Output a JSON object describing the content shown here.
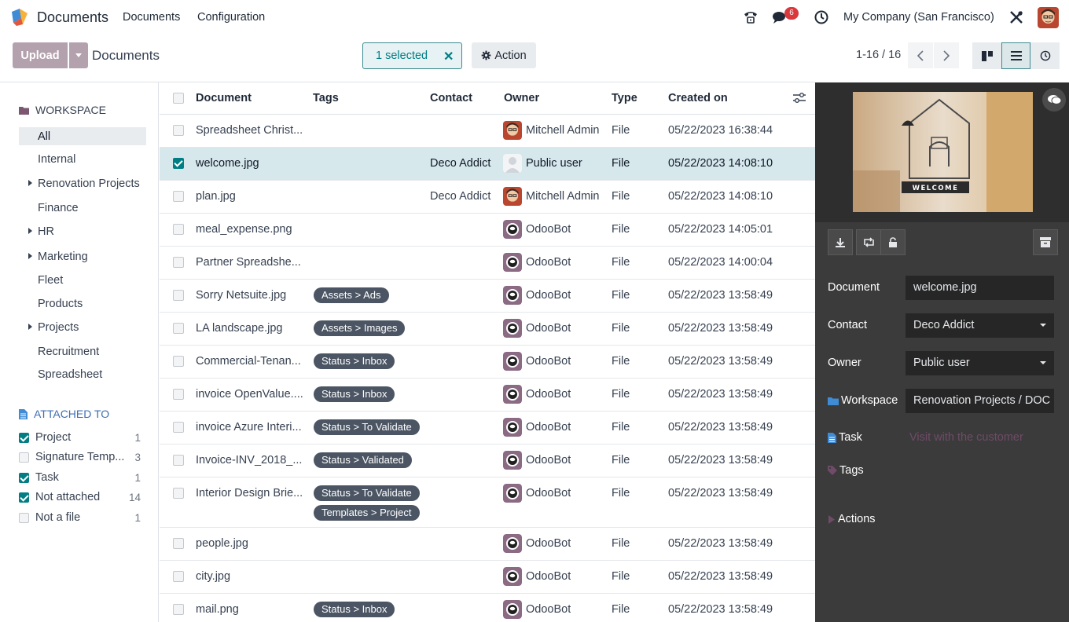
{
  "navbar": {
    "app_name": "Documents",
    "menus": [
      "Documents",
      "Configuration"
    ],
    "icons": [
      "phone-icon",
      "chat-icon",
      "clock-icon",
      "debug-tools-icon"
    ],
    "messages_badge": "6",
    "company": "My Company (San Francisco)"
  },
  "control_panel": {
    "upload_label": "Upload",
    "breadcrumb": "Documents",
    "selected_label": "1 selected",
    "action_label": "Action",
    "pager": "1-16 / 16"
  },
  "sidebar": {
    "workspace_title": "WORKSPACE",
    "workspaces": [
      {
        "label": "All",
        "expandable": false,
        "active": true
      },
      {
        "label": "Internal",
        "expandable": false,
        "active": false
      },
      {
        "label": "Renovation Projects",
        "expandable": true,
        "active": false
      },
      {
        "label": "Finance",
        "expandable": false,
        "active": false
      },
      {
        "label": "HR",
        "expandable": true,
        "active": false
      },
      {
        "label": "Marketing",
        "expandable": true,
        "active": false
      },
      {
        "label": "Fleet",
        "expandable": false,
        "active": false
      },
      {
        "label": "Products",
        "expandable": false,
        "active": false
      },
      {
        "label": "Projects",
        "expandable": true,
        "active": false
      },
      {
        "label": "Recruitment",
        "expandable": false,
        "active": false
      },
      {
        "label": "Spreadsheet",
        "expandable": false,
        "active": false
      }
    ],
    "attached_title": "ATTACHED TO",
    "filters": [
      {
        "label": "Project",
        "count": "1",
        "checked": true
      },
      {
        "label": "Signature Temp...",
        "count": "3",
        "checked": false
      },
      {
        "label": "Task",
        "count": "1",
        "checked": true
      },
      {
        "label": "Not attached",
        "count": "14",
        "checked": true
      },
      {
        "label": "Not a file",
        "count": "1",
        "checked": false
      }
    ]
  },
  "table": {
    "headers": {
      "document": "Document",
      "tags": "Tags",
      "contact": "Contact",
      "owner": "Owner",
      "type": "Type",
      "created": "Created on"
    },
    "rows": [
      {
        "document": "Spreadsheet Christ...",
        "tags": [],
        "contact": "",
        "owner": "Mitchell Admin",
        "type": "File",
        "created": "05/22/2023 16:38:44",
        "selected": false
      },
      {
        "document": "welcome.jpg",
        "tags": [],
        "contact": "Deco Addict",
        "owner": "Public user",
        "type": "File",
        "created": "05/22/2023 14:08:10",
        "selected": true
      },
      {
        "document": "plan.jpg",
        "tags": [],
        "contact": "Deco Addict",
        "owner": "Mitchell Admin",
        "type": "File",
        "created": "05/22/2023 14:08:10",
        "selected": false
      },
      {
        "document": "meal_expense.png",
        "tags": [],
        "contact": "",
        "owner": "OdooBot",
        "type": "File",
        "created": "05/22/2023 14:05:01",
        "selected": false
      },
      {
        "document": "Partner Spreadshe...",
        "tags": [],
        "contact": "",
        "owner": "OdooBot",
        "type": "File",
        "created": "05/22/2023 14:00:04",
        "selected": false
      },
      {
        "document": "Sorry Netsuite.jpg",
        "tags": [
          "Assets > Ads"
        ],
        "contact": "",
        "owner": "OdooBot",
        "type": "File",
        "created": "05/22/2023 13:58:49",
        "selected": false
      },
      {
        "document": "LA landscape.jpg",
        "tags": [
          "Assets > Images"
        ],
        "contact": "",
        "owner": "OdooBot",
        "type": "File",
        "created": "05/22/2023 13:58:49",
        "selected": false
      },
      {
        "document": "Commercial-Tenan...",
        "tags": [
          "Status > Inbox"
        ],
        "contact": "",
        "owner": "OdooBot",
        "type": "File",
        "created": "05/22/2023 13:58:49",
        "selected": false
      },
      {
        "document": "invoice OpenValue....",
        "tags": [
          "Status > Inbox"
        ],
        "contact": "",
        "owner": "OdooBot",
        "type": "File",
        "created": "05/22/2023 13:58:49",
        "selected": false
      },
      {
        "document": "invoice Azure Interi...",
        "tags": [
          "Status > To Validate"
        ],
        "contact": "",
        "owner": "OdooBot",
        "type": "File",
        "created": "05/22/2023 13:58:49",
        "selected": false
      },
      {
        "document": "Invoice-INV_2018_...",
        "tags": [
          "Status > Validated"
        ],
        "contact": "",
        "owner": "OdooBot",
        "type": "File",
        "created": "05/22/2023 13:58:49",
        "selected": false
      },
      {
        "document": "Interior Design Brie...",
        "tags": [
          "Status > To Validate",
          "Templates > Project"
        ],
        "contact": "",
        "owner": "OdooBot",
        "type": "File",
        "created": "05/22/2023 13:58:49",
        "selected": false
      },
      {
        "document": "people.jpg",
        "tags": [],
        "contact": "",
        "owner": "OdooBot",
        "type": "File",
        "created": "05/22/2023 13:58:49",
        "selected": false
      },
      {
        "document": "city.jpg",
        "tags": [],
        "contact": "",
        "owner": "OdooBot",
        "type": "File",
        "created": "05/22/2023 13:58:49",
        "selected": false
      },
      {
        "document": "mail.png",
        "tags": [
          "Status > Inbox"
        ],
        "contact": "",
        "owner": "OdooBot",
        "type": "File",
        "created": "05/22/2023 13:58:49",
        "selected": false
      }
    ]
  },
  "inspector": {
    "preview_text": "WELCOME",
    "labels": {
      "document": "Document",
      "contact": "Contact",
      "owner": "Owner",
      "workspace": "Workspace",
      "task": "Task",
      "tags": "Tags",
      "actions": "Actions"
    },
    "document_value": "welcome.jpg",
    "contact_value": "Deco Addict",
    "owner_value": "Public user",
    "workspace_value": "Renovation Projects / DOC",
    "task_value": "Visit with the customer"
  },
  "colors": {
    "accent": "#017e84",
    "upload": "#b3a1ad",
    "selected_row": "#d6e8ec",
    "inspector_bg": "#3b3b3b",
    "tag_bg": "#4b5563",
    "badge": "#d9383c"
  }
}
